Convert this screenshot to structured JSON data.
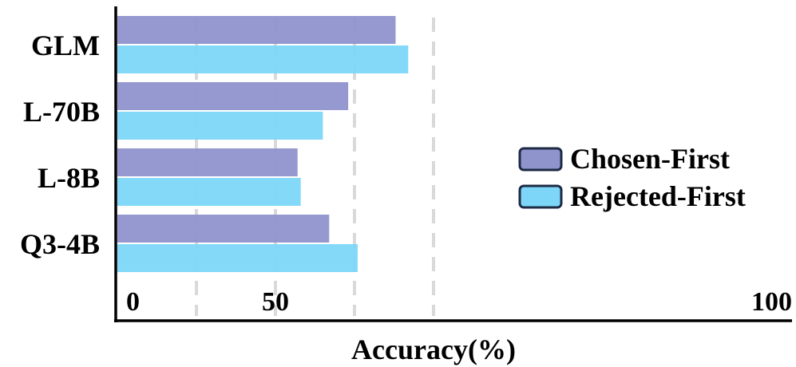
{
  "chart_data": {
    "type": "bar",
    "orientation": "horizontal",
    "categories": [
      "GLM",
      "L-70B",
      "L-8B",
      "Q3-4B"
    ],
    "series": [
      {
        "name": "Chosen-First",
        "values": [
          88,
          73,
          57,
          67
        ],
        "color": "#8f94cc"
      },
      {
        "name": "Rejected-First",
        "values": [
          92,
          65,
          58,
          76
        ],
        "color": "#7dd6f8"
      }
    ],
    "xlabel": "Accuracy(%)",
    "xlim": [
      0,
      100
    ],
    "xticks": [
      0,
      50,
      100
    ],
    "tick_labels": [
      "0",
      "50",
      "100"
    ],
    "gridlines": [
      25,
      50,
      75,
      100
    ],
    "grid": true,
    "grid_style": "dashed",
    "legend_position": "right",
    "legend_border_color": "#1c2a44"
  }
}
